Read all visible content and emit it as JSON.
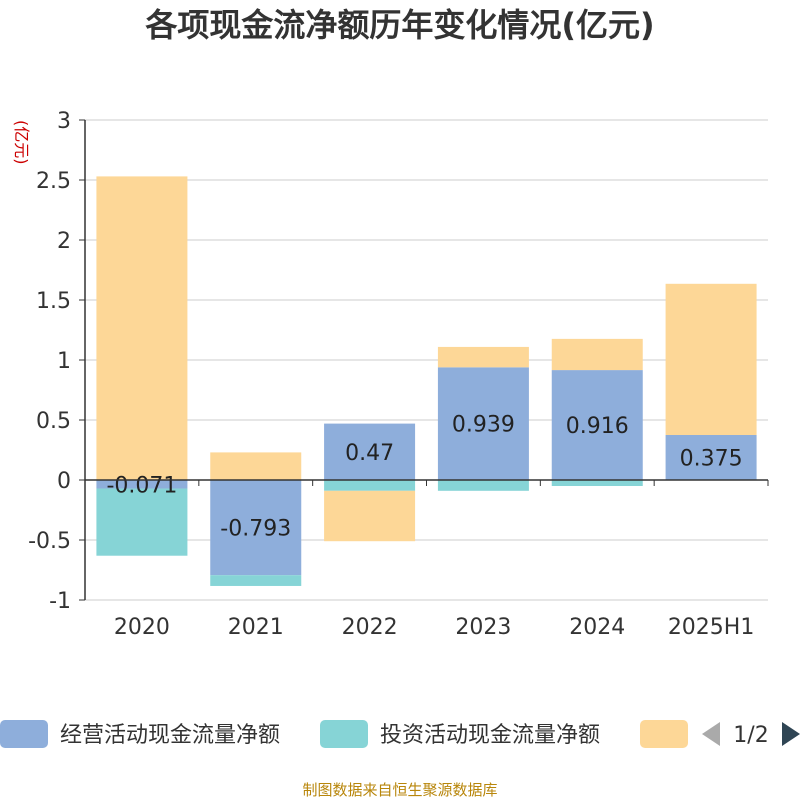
{
  "chart_data": {
    "type": "bar",
    "title": "各项现金流净额历年变化情况(亿元)",
    "ylabel": "(亿元)",
    "categories": [
      "2020",
      "2021",
      "2022",
      "2023",
      "2024",
      "2025H1"
    ],
    "ylim": [
      -1,
      3
    ],
    "yticks": [
      "3",
      "2.5",
      "2",
      "1.5",
      "1",
      "0.5",
      "0",
      "-0.5",
      "-1"
    ],
    "stacked": true,
    "series": [
      {
        "name": "经营活动现金流量净额",
        "color": "#8eaedb",
        "values": [
          -0.071,
          -0.793,
          0.47,
          0.939,
          0.916,
          0.375
        ],
        "labels": [
          "-0.071",
          "-0.793",
          "0.47",
          "0.939",
          "0.916",
          "0.375"
        ]
      },
      {
        "name": "投资活动现金流量净额",
        "color": "#86d4d6",
        "values": [
          -0.56,
          -0.09,
          -0.09,
          -0.09,
          -0.05,
          0
        ]
      },
      {
        "name": "",
        "color": "#fdd797",
        "values": [
          2.53,
          0.23,
          -0.42,
          0.17,
          0.26,
          1.26
        ]
      }
    ],
    "legend": {
      "position": "bottom",
      "page": "1/2"
    },
    "grid": true
  },
  "source": "制图数据来自恒生聚源数据库"
}
